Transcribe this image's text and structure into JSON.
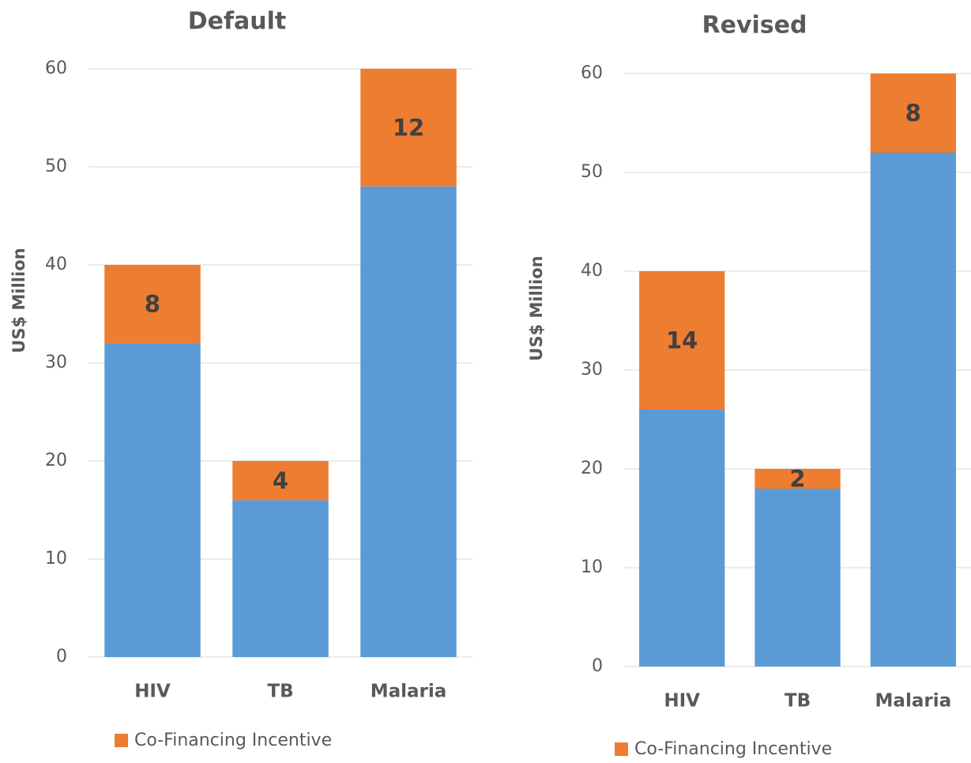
{
  "chart_data": [
    {
      "type": "bar",
      "stacked": true,
      "title": "Default",
      "y_label": "US$ Million",
      "categories": [
        "HIV",
        "TB",
        "Malaria"
      ],
      "series": [
        {
          "color": "#5b9bd5",
          "values": [
            32,
            16,
            48
          ]
        },
        {
          "name": "Co-Financing Incentive",
          "color": "#ed7d31",
          "values": [
            8,
            4,
            12
          ],
          "data_labels": true
        }
      ],
      "ylim": [
        0,
        60
      ],
      "yticks": [
        0,
        10,
        20,
        30,
        40,
        50,
        60
      ],
      "grid": true,
      "legend": "bottom"
    },
    {
      "type": "bar",
      "stacked": true,
      "title": "Revised",
      "y_label": "US$ Million",
      "categories": [
        "HIV",
        "TB",
        "Malaria"
      ],
      "series": [
        {
          "color": "#5b9bd5",
          "values": [
            26,
            18,
            52
          ]
        },
        {
          "name": "Co-Financing Incentive",
          "color": "#ed7d31",
          "values": [
            14,
            2,
            8
          ],
          "data_labels": true
        }
      ],
      "ylim": [
        0,
        60
      ],
      "yticks": [
        0,
        10,
        20,
        30,
        40,
        50,
        60
      ],
      "grid": true,
      "legend": "bottom"
    }
  ]
}
